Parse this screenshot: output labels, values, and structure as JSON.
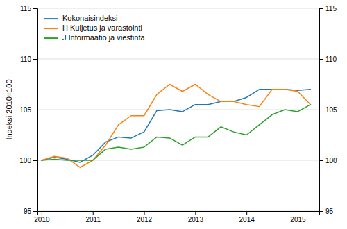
{
  "chart_data": {
    "type": "line",
    "ylabel": "Indeksi 2010=100",
    "x": [
      2010.0,
      2010.25,
      2010.5,
      2010.75,
      2011.0,
      2011.25,
      2011.5,
      2011.75,
      2012.0,
      2012.25,
      2012.5,
      2012.75,
      2013.0,
      2013.25,
      2013.5,
      2013.75,
      2014.0,
      2014.25,
      2014.5,
      2014.75,
      2015.0,
      2015.25
    ],
    "series": [
      {
        "name": "Kokonaisindeksi",
        "values": [
          100.0,
          100.3,
          100.1,
          99.8,
          100.5,
          101.8,
          102.3,
          102.2,
          102.8,
          104.9,
          105.0,
          104.8,
          105.5,
          105.5,
          105.8,
          105.8,
          106.2,
          107.0,
          107.0,
          107.0,
          106.9,
          107.0
        ]
      },
      {
        "name": "H Kuljetus ja varastointi",
        "values": [
          100.0,
          100.4,
          100.2,
          99.3,
          100.0,
          101.5,
          103.5,
          104.4,
          104.4,
          106.5,
          107.5,
          106.8,
          107.5,
          106.5,
          105.8,
          105.8,
          105.5,
          105.3,
          107.0,
          107.0,
          106.8,
          105.5
        ]
      },
      {
        "name": "J Informaatio ja viestintä",
        "values": [
          100.0,
          100.1,
          100.0,
          100.0,
          100.0,
          101.1,
          101.3,
          101.1,
          101.3,
          102.3,
          102.2,
          101.5,
          102.3,
          102.3,
          103.3,
          102.8,
          102.5,
          103.5,
          104.5,
          105.0,
          104.8,
          105.5
        ]
      }
    ],
    "xlim": [
      2009.92,
      2015.42
    ],
    "xticks": [
      2010,
      2011,
      2012,
      2013,
      2014,
      2015
    ],
    "ylim": [
      95,
      115
    ],
    "yticks": [
      95,
      100,
      105,
      110,
      115
    ],
    "y2lim": [
      95,
      115
    ],
    "y2ticks": [
      95,
      100,
      105,
      110,
      115
    ],
    "grid": "y",
    "legend": "upper left"
  }
}
